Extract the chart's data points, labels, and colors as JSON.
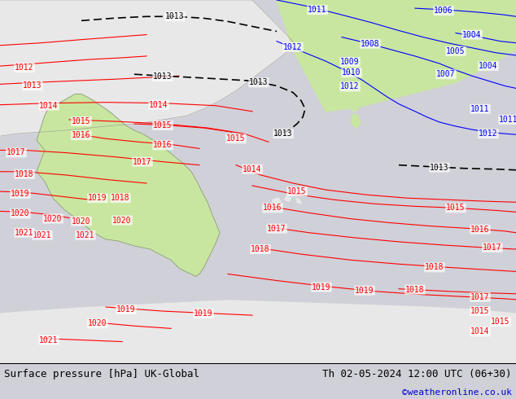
{
  "title_left": "Surface pressure [hPa] UK-Global",
  "title_right": "Th 02-05-2024 12:00 UTC (06+30)",
  "copyright": "©weatheronline.co.uk",
  "bg_color": "#d0d0d8",
  "land_color_green": "#c8e6a0",
  "land_color_light": "#e8e8e8",
  "sea_color": "#d0d0d8",
  "footer_bg": "#d4d4d4",
  "footer_text_color": "#000000",
  "copyright_color": "#0000cc",
  "contour_red": "#ff0000",
  "contour_blue": "#0000ff",
  "contour_black": "#000000",
  "label_fontsize": 7,
  "footer_fontsize": 9,
  "fig_width": 6.34,
  "fig_height": 4.9
}
